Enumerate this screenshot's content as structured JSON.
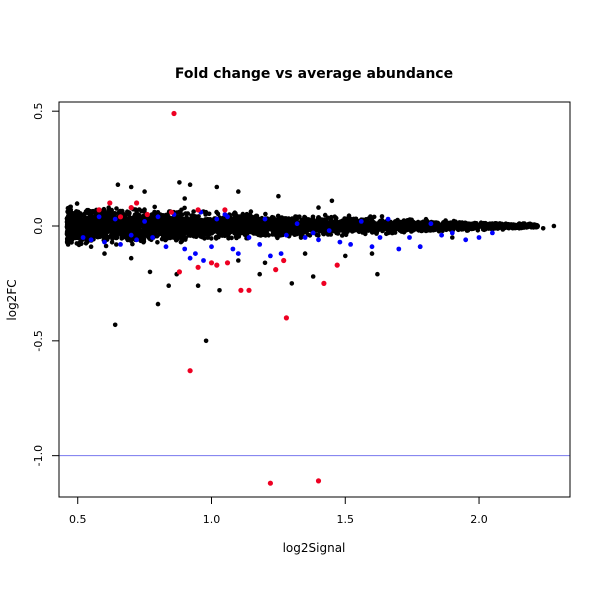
{
  "chart_data": {
    "type": "scatter",
    "title": "Fold change vs average abundance",
    "xlabel": "log2Signal",
    "ylabel": "log2FC",
    "xlim": [
      0.43,
      2.34
    ],
    "ylim": [
      -1.18,
      0.54
    ],
    "xticks": [
      {
        "value": 0.5,
        "label": "0.5"
      },
      {
        "value": 1.0,
        "label": "1.0"
      },
      {
        "value": 1.5,
        "label": "1.5"
      },
      {
        "value": 2.0,
        "label": "2.0"
      }
    ],
    "yticks": [
      {
        "value": 0.5,
        "label": "0.5"
      },
      {
        "value": 0.0,
        "label": "0.0"
      },
      {
        "value": -0.5,
        "label": "-0.5"
      },
      {
        "value": -1.0,
        "label": "-1.0"
      }
    ],
    "grid": false,
    "legend": "none",
    "reference_line": {
      "y": -1.0,
      "color": "#7777ee"
    },
    "series": [
      {
        "color": "#000000",
        "points": [
          [
            0.64,
            -0.43
          ],
          [
            0.98,
            -0.5
          ],
          [
            0.8,
            -0.34
          ],
          [
            0.84,
            -0.26
          ],
          [
            0.95,
            -0.26
          ],
          [
            1.03,
            -0.28
          ],
          [
            0.77,
            -0.2
          ],
          [
            0.87,
            -0.21
          ],
          [
            1.18,
            -0.21
          ],
          [
            1.3,
            -0.25
          ],
          [
            1.38,
            -0.22
          ],
          [
            1.62,
            -0.21
          ],
          [
            0.88,
            0.19
          ],
          [
            0.7,
            0.17
          ],
          [
            1.02,
            0.17
          ],
          [
            0.65,
            0.18
          ],
          [
            0.75,
            0.15
          ],
          [
            0.92,
            0.18
          ],
          [
            1.1,
            0.15
          ],
          [
            1.25,
            0.13
          ],
          [
            1.45,
            0.11
          ],
          [
            2.28,
            0.0
          ],
          [
            2.24,
            -0.01
          ],
          [
            2.2,
            0.0
          ],
          [
            2.15,
            -0.01
          ],
          [
            2.1,
            0.01
          ],
          [
            1.9,
            -0.05
          ],
          [
            1.78,
            -0.09
          ],
          [
            1.6,
            -0.12
          ],
          [
            1.5,
            -0.13
          ],
          [
            0.6,
            -0.12
          ],
          [
            0.7,
            -0.14
          ],
          [
            0.55,
            -0.09
          ],
          [
            0.48,
            0.03
          ],
          [
            0.47,
            -0.02
          ],
          [
            1.2,
            -0.16
          ],
          [
            1.1,
            -0.15
          ],
          [
            1.35,
            -0.12
          ],
          [
            1.4,
            0.08
          ],
          [
            0.9,
            0.12
          ]
        ],
        "band": {
          "x_start": 0.46,
          "x_end": 2.22,
          "half_width_start": 0.09,
          "half_width_end": 0.01
        }
      },
      {
        "color": "#0000ff",
        "points": [
          [
            0.52,
            -0.05
          ],
          [
            0.55,
            -0.06
          ],
          [
            0.58,
            0.04
          ],
          [
            0.6,
            -0.07
          ],
          [
            0.64,
            0.03
          ],
          [
            0.66,
            -0.08
          ],
          [
            0.7,
            -0.04
          ],
          [
            0.72,
            -0.06
          ],
          [
            0.75,
            0.02
          ],
          [
            0.78,
            -0.05
          ],
          [
            0.8,
            0.04
          ],
          [
            0.83,
            -0.09
          ],
          [
            0.86,
            0.05
          ],
          [
            0.9,
            -0.1
          ],
          [
            0.92,
            -0.14
          ],
          [
            0.94,
            -0.12
          ],
          [
            0.97,
            -0.15
          ],
          [
            1.0,
            -0.09
          ],
          [
            1.02,
            0.03
          ],
          [
            1.05,
            0.05
          ],
          [
            1.08,
            -0.1
          ],
          [
            1.1,
            -0.12
          ],
          [
            1.14,
            -0.05
          ],
          [
            1.18,
            -0.08
          ],
          [
            1.22,
            -0.13
          ],
          [
            1.26,
            -0.12
          ],
          [
            1.28,
            -0.04
          ],
          [
            1.32,
            0.01
          ],
          [
            1.35,
            -0.05
          ],
          [
            1.38,
            -0.03
          ],
          [
            1.4,
            -0.06
          ],
          [
            1.44,
            -0.02
          ],
          [
            1.48,
            -0.07
          ],
          [
            1.52,
            -0.08
          ],
          [
            1.56,
            0.02
          ],
          [
            1.6,
            -0.09
          ],
          [
            1.63,
            -0.05
          ],
          [
            1.66,
            0.03
          ],
          [
            1.7,
            -0.1
          ],
          [
            1.74,
            -0.05
          ],
          [
            1.78,
            -0.09
          ],
          [
            1.82,
            0.01
          ],
          [
            1.86,
            -0.04
          ],
          [
            1.9,
            -0.03
          ],
          [
            1.95,
            -0.06
          ],
          [
            2.0,
            -0.05
          ],
          [
            2.05,
            -0.03
          ],
          [
            1.06,
            0.04
          ],
          [
            0.96,
            0.06
          ],
          [
            1.2,
            0.03
          ]
        ]
      },
      {
        "color": "#ee0022",
        "points": [
          [
            0.86,
            0.49
          ],
          [
            0.92,
            -0.63
          ],
          [
            1.22,
            -1.12
          ],
          [
            1.4,
            -1.11
          ],
          [
            1.28,
            -0.4
          ],
          [
            1.11,
            -0.28
          ],
          [
            1.14,
            -0.28
          ],
          [
            1.42,
            -0.25
          ],
          [
            0.88,
            -0.2
          ],
          [
            0.95,
            -0.18
          ],
          [
            1.02,
            -0.17
          ],
          [
            1.06,
            -0.16
          ],
          [
            1.24,
            -0.19
          ],
          [
            1.27,
            -0.15
          ],
          [
            1.47,
            -0.17
          ],
          [
            0.85,
            0.06
          ],
          [
            0.95,
            0.07
          ],
          [
            1.05,
            0.07
          ],
          [
            0.62,
            0.1
          ],
          [
            0.7,
            0.08
          ],
          [
            0.58,
            0.07
          ],
          [
            0.72,
            0.1
          ],
          [
            0.76,
            0.05
          ],
          [
            0.66,
            0.04
          ],
          [
            1.0,
            -0.16
          ]
        ]
      }
    ]
  }
}
